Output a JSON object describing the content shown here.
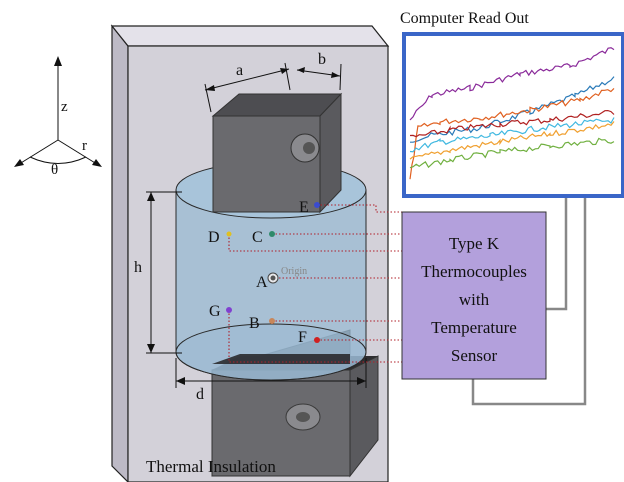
{
  "axes": {
    "z": "z",
    "r": "r",
    "theta": "θ"
  },
  "dimensions": {
    "a": "a",
    "b": "b",
    "h": "h",
    "d": "d"
  },
  "labels": {
    "readout_title": "Computer Read Out",
    "insulation": "Thermal Insulation",
    "origin": "Origin"
  },
  "sensor_box": {
    "lines": [
      "Type K",
      "Thermocouples",
      "with",
      "Temperature",
      "Sensor"
    ],
    "fill": "#b3a0dc"
  },
  "points": [
    {
      "id": "A",
      "color": "#555555"
    },
    {
      "id": "B",
      "color": "#c8865a"
    },
    {
      "id": "C",
      "color": "#2f8a6a"
    },
    {
      "id": "D",
      "color": "#e0c020"
    },
    {
      "id": "E",
      "color": "#3a4bd0"
    },
    {
      "id": "F",
      "color": "#d02020"
    },
    {
      "id": "G",
      "color": "#8040d0"
    }
  ],
  "colors": {
    "insulation": "#d3d1d9",
    "cylinder": "#9ab9d2",
    "block": "#5a5a5e",
    "readout_border": "#3a66c8",
    "wire": "#b0202a",
    "cable": "#888888"
  },
  "readout_traces": [
    {
      "color": "#8a2a9a"
    },
    {
      "color": "#2a7ab8"
    },
    {
      "color": "#e06020"
    },
    {
      "color": "#b02020"
    },
    {
      "color": "#40b8e0"
    },
    {
      "color": "#f0a030"
    },
    {
      "color": "#70b040"
    }
  ]
}
